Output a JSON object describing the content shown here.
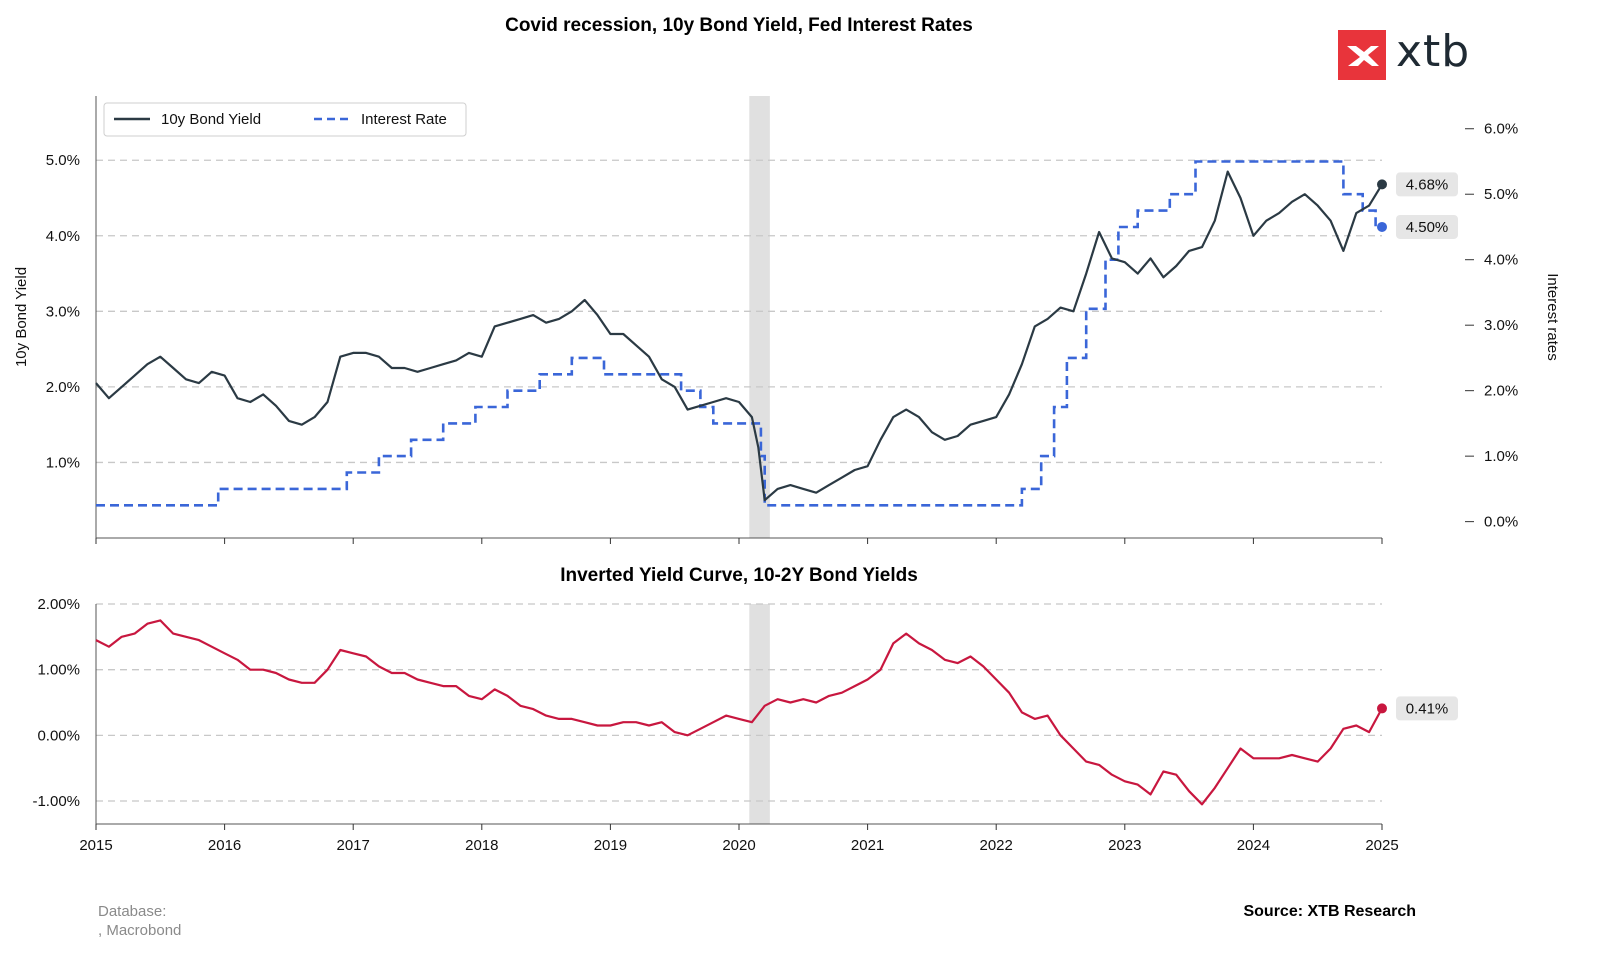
{
  "logo": {
    "text": "xtb",
    "colors": {
      "box": "#e8343b",
      "text": "#1f2a33"
    }
  },
  "footer": {
    "database": "Database:\n, Macrobond",
    "source": "Source: XTB Research"
  },
  "colors": {
    "bond": "#2b3a44",
    "rate": "#3a66d8",
    "spread": "#c8173f",
    "recession": "#e0e0e0",
    "grid": "#c8c8c8"
  },
  "chart_data": [
    {
      "type": "line",
      "title": "Covid recession, 10y Bond Yield, Fed Interest Rates",
      "ylabel": "10y Bond Yield",
      "y2label": "Interest rates",
      "xlim": [
        2015.0,
        2025.0
      ],
      "ylim": [
        0.0,
        5.85
      ],
      "y2lim": [
        -0.25,
        6.5
      ],
      "y_ticks": [
        "1.0%",
        "2.0%",
        "3.0%",
        "4.0%",
        "5.0%"
      ],
      "y2_ticks": [
        "0.0%",
        "1.0%",
        "2.0%",
        "3.0%",
        "4.0%",
        "5.0%",
        "6.0%"
      ],
      "grid": "horizontal dashed",
      "legend": "top-left",
      "recession_shade": [
        2020.08,
        2020.24
      ],
      "series": [
        {
          "name": "10y Bond Yield",
          "style": "solid",
          "x": [
            2015.0,
            2015.1,
            2015.2,
            2015.3,
            2015.4,
            2015.5,
            2015.6,
            2015.7,
            2015.8,
            2015.9,
            2016.0,
            2016.1,
            2016.2,
            2016.3,
            2016.4,
            2016.5,
            2016.6,
            2016.7,
            2016.8,
            2016.9,
            2017.0,
            2017.1,
            2017.2,
            2017.3,
            2017.4,
            2017.5,
            2017.6,
            2017.7,
            2017.8,
            2017.9,
            2018.0,
            2018.1,
            2018.2,
            2018.3,
            2018.4,
            2018.5,
            2018.6,
            2018.7,
            2018.8,
            2018.9,
            2019.0,
            2019.1,
            2019.2,
            2019.3,
            2019.4,
            2019.5,
            2019.6,
            2019.7,
            2019.8,
            2019.9,
            2020.0,
            2020.1,
            2020.15,
            2020.2,
            2020.3,
            2020.4,
            2020.5,
            2020.6,
            2020.7,
            2020.8,
            2020.9,
            2021.0,
            2021.1,
            2021.2,
            2021.3,
            2021.4,
            2021.5,
            2021.6,
            2021.7,
            2021.8,
            2021.9,
            2022.0,
            2022.1,
            2022.2,
            2022.3,
            2022.4,
            2022.5,
            2022.6,
            2022.7,
            2022.8,
            2022.9,
            2023.0,
            2023.1,
            2023.2,
            2023.3,
            2023.4,
            2023.5,
            2023.6,
            2023.7,
            2023.8,
            2023.9,
            2024.0,
            2024.1,
            2024.2,
            2024.3,
            2024.4,
            2024.5,
            2024.6,
            2024.7,
            2024.8,
            2024.9,
            2025.0
          ],
          "y": [
            2.05,
            1.85,
            2.0,
            2.15,
            2.3,
            2.4,
            2.25,
            2.1,
            2.05,
            2.2,
            2.15,
            1.85,
            1.8,
            1.9,
            1.75,
            1.55,
            1.5,
            1.6,
            1.8,
            2.4,
            2.45,
            2.45,
            2.4,
            2.25,
            2.25,
            2.2,
            2.25,
            2.3,
            2.35,
            2.45,
            2.4,
            2.8,
            2.85,
            2.9,
            2.95,
            2.85,
            2.9,
            3.0,
            3.15,
            2.95,
            2.7,
            2.7,
            2.55,
            2.4,
            2.1,
            2.0,
            1.7,
            1.75,
            1.8,
            1.85,
            1.8,
            1.6,
            1.2,
            0.5,
            0.65,
            0.7,
            0.65,
            0.6,
            0.7,
            0.8,
            0.9,
            0.95,
            1.3,
            1.6,
            1.7,
            1.6,
            1.4,
            1.3,
            1.35,
            1.5,
            1.55,
            1.6,
            1.9,
            2.3,
            2.8,
            2.9,
            3.05,
            3.0,
            3.5,
            4.05,
            3.7,
            3.65,
            3.5,
            3.7,
            3.45,
            3.6,
            3.8,
            3.85,
            4.2,
            4.85,
            4.5,
            4.0,
            4.2,
            4.3,
            4.45,
            4.55,
            4.4,
            4.2,
            3.8,
            4.3,
            4.4,
            4.68
          ]
        },
        {
          "name": "Interest Rate",
          "style": "dashed",
          "axis": "secondary",
          "x": [
            2015.0,
            2015.95,
            2016.95,
            2017.2,
            2017.45,
            2017.7,
            2017.95,
            2018.2,
            2018.45,
            2018.7,
            2018.95,
            2019.55,
            2019.7,
            2019.8,
            2020.17,
            2020.2,
            2022.2,
            2022.35,
            2022.45,
            2022.55,
            2022.7,
            2022.85,
            2022.95,
            2023.1,
            2023.35,
            2023.55,
            2024.7,
            2024.85,
            2024.95,
            2025.0
          ],
          "y": [
            0.25,
            0.5,
            0.75,
            1.0,
            1.25,
            1.5,
            1.75,
            2.0,
            2.25,
            2.5,
            2.25,
            2.0,
            1.75,
            1.5,
            1.0,
            0.25,
            0.5,
            1.0,
            1.75,
            2.5,
            3.25,
            4.0,
            4.5,
            4.75,
            5.0,
            5.5,
            5.0,
            4.75,
            4.5,
            4.5
          ]
        }
      ],
      "end_labels": [
        {
          "series": "10y Bond Yield",
          "label": "4.68%",
          "value": 4.68
        },
        {
          "series": "Interest Rate",
          "label": "4.50%",
          "value": 4.5
        }
      ]
    },
    {
      "type": "line",
      "title": "Inverted Yield Curve, 10-2Y Bond Yields",
      "xlim": [
        2015.0,
        2025.0
      ],
      "ylim": [
        -1.35,
        2.0
      ],
      "y_ticks": [
        "-1.00%",
        "0.00%",
        "1.00%",
        "2.00%"
      ],
      "x_ticks": [
        "2015",
        "2016",
        "2017",
        "2018",
        "2019",
        "2020",
        "2021",
        "2022",
        "2023",
        "2024",
        "2025"
      ],
      "grid": "horizontal dashed",
      "recession_shade": [
        2020.08,
        2020.24
      ],
      "series": [
        {
          "name": "10-2Y",
          "style": "solid",
          "x": [
            2015.0,
            2015.1,
            2015.2,
            2015.3,
            2015.4,
            2015.5,
            2015.6,
            2015.7,
            2015.8,
            2015.9,
            2016.0,
            2016.1,
            2016.2,
            2016.3,
            2016.4,
            2016.5,
            2016.6,
            2016.7,
            2016.8,
            2016.9,
            2017.0,
            2017.1,
            2017.2,
            2017.3,
            2017.4,
            2017.5,
            2017.6,
            2017.7,
            2017.8,
            2017.9,
            2018.0,
            2018.1,
            2018.2,
            2018.3,
            2018.4,
            2018.5,
            2018.6,
            2018.7,
            2018.8,
            2018.9,
            2019.0,
            2019.1,
            2019.2,
            2019.3,
            2019.4,
            2019.5,
            2019.6,
            2019.7,
            2019.8,
            2019.9,
            2020.0,
            2020.1,
            2020.2,
            2020.3,
            2020.4,
            2020.5,
            2020.6,
            2020.7,
            2020.8,
            2020.9,
            2021.0,
            2021.1,
            2021.2,
            2021.3,
            2021.4,
            2021.5,
            2021.6,
            2021.7,
            2021.8,
            2021.9,
            2022.0,
            2022.1,
            2022.2,
            2022.3,
            2022.4,
            2022.5,
            2022.6,
            2022.7,
            2022.8,
            2022.9,
            2023.0,
            2023.1,
            2023.2,
            2023.3,
            2023.4,
            2023.5,
            2023.6,
            2023.7,
            2023.8,
            2023.9,
            2024.0,
            2024.1,
            2024.2,
            2024.3,
            2024.4,
            2024.5,
            2024.6,
            2024.7,
            2024.8,
            2024.9,
            2025.0
          ],
          "y": [
            1.45,
            1.35,
            1.5,
            1.55,
            1.7,
            1.75,
            1.55,
            1.5,
            1.45,
            1.35,
            1.25,
            1.15,
            1.0,
            1.0,
            0.95,
            0.85,
            0.8,
            0.8,
            1.0,
            1.3,
            1.25,
            1.2,
            1.05,
            0.95,
            0.95,
            0.85,
            0.8,
            0.75,
            0.75,
            0.6,
            0.55,
            0.7,
            0.6,
            0.45,
            0.4,
            0.3,
            0.25,
            0.25,
            0.2,
            0.15,
            0.15,
            0.2,
            0.2,
            0.15,
            0.2,
            0.05,
            0.0,
            0.1,
            0.2,
            0.3,
            0.25,
            0.2,
            0.45,
            0.55,
            0.5,
            0.55,
            0.5,
            0.6,
            0.65,
            0.75,
            0.85,
            1.0,
            1.4,
            1.55,
            1.4,
            1.3,
            1.15,
            1.1,
            1.2,
            1.05,
            0.85,
            0.65,
            0.35,
            0.25,
            0.3,
            0.0,
            -0.2,
            -0.4,
            -0.45,
            -0.6,
            -0.7,
            -0.75,
            -0.9,
            -0.55,
            -0.6,
            -0.85,
            -1.05,
            -0.8,
            -0.5,
            -0.2,
            -0.35,
            -0.35,
            -0.35,
            -0.3,
            -0.35,
            -0.4,
            -0.2,
            0.1,
            0.15,
            0.05,
            0.41
          ]
        }
      ],
      "end_labels": [
        {
          "series": "10-2Y",
          "label": "0.41%",
          "value": 0.41
        }
      ]
    }
  ]
}
